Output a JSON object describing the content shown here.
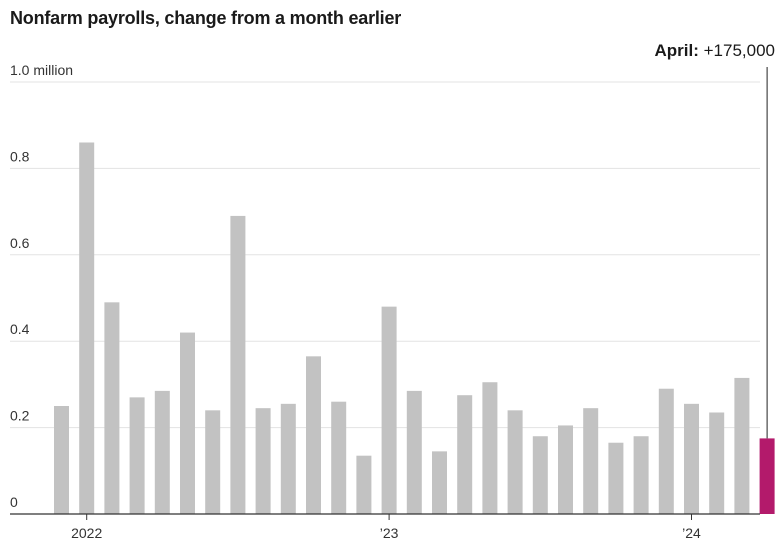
{
  "chart_data": {
    "type": "bar",
    "title": "Nonfarm payrolls, change from a month earlier",
    "unit": "million",
    "ylim": [
      0,
      1.0
    ],
    "y_ticks": [
      {
        "value": 0,
        "label": "0"
      },
      {
        "value": 0.2,
        "label": "0.2"
      },
      {
        "value": 0.4,
        "label": "0.4"
      },
      {
        "value": 0.6,
        "label": "0.6"
      },
      {
        "value": 0.8,
        "label": "0.8"
      },
      {
        "value": 1.0,
        "label": "1.0 million"
      }
    ],
    "x_ticks": [
      {
        "category": "2022-01",
        "label": "2022"
      },
      {
        "category": "2023-01",
        "label": "’23"
      },
      {
        "category": "2024-01",
        "label": "’24"
      }
    ],
    "grid": true,
    "categories": [
      "2021-12",
      "2022-01",
      "2022-02",
      "2022-03",
      "2022-04",
      "2022-05",
      "2022-06",
      "2022-07",
      "2022-08",
      "2022-09",
      "2022-10",
      "2022-11",
      "2022-12",
      "2023-01",
      "2023-02",
      "2023-03",
      "2023-04",
      "2023-05",
      "2023-06",
      "2023-07",
      "2023-08",
      "2023-09",
      "2023-10",
      "2023-11",
      "2023-12",
      "2024-01",
      "2024-02",
      "2024-03",
      "2024-04"
    ],
    "values": [
      0.25,
      0.86,
      0.49,
      0.27,
      0.285,
      0.42,
      0.24,
      0.69,
      0.245,
      0.255,
      0.365,
      0.26,
      0.135,
      0.48,
      0.285,
      0.145,
      0.275,
      0.305,
      0.24,
      0.18,
      0.205,
      0.245,
      0.165,
      0.18,
      0.29,
      0.255,
      0.235,
      0.315,
      0.175
    ],
    "colors": {
      "bar": "#c2c2c2",
      "highlight": "#b31a6b",
      "grid": "#e3e3e3",
      "axis": "#333333"
    },
    "annotation": {
      "category": "2024-04",
      "month": "April",
      "value_text": "+175,000"
    }
  }
}
